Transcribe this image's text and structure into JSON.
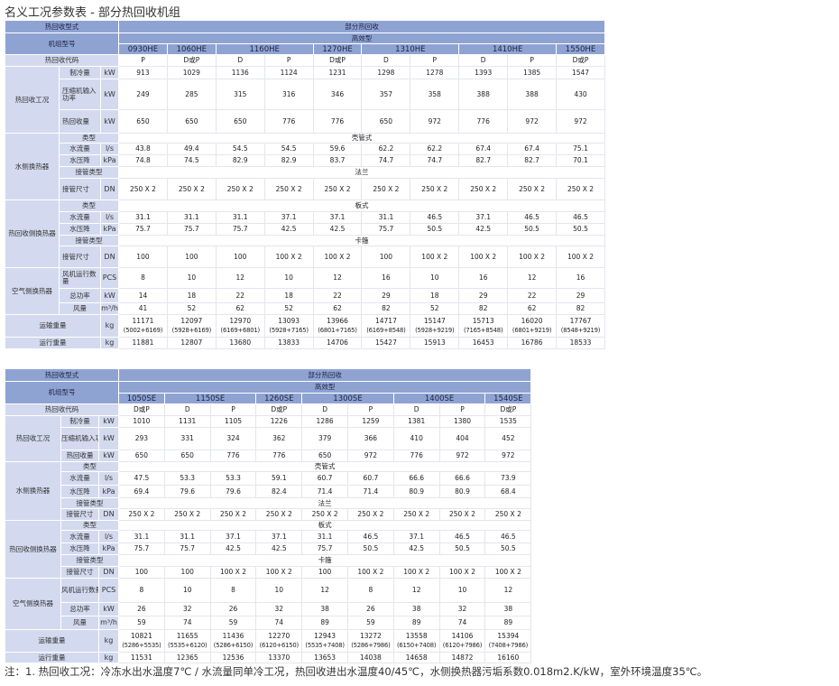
{
  "title": "名义工况参数表 - 部分热回收机组",
  "table1": {
    "type_label": "热回收型式",
    "type_value": "部分热回收",
    "model_label": "机组型号",
    "series": "高效型",
    "models": [
      {
        "name": "0930HE",
        "span": 1
      },
      {
        "name": "1060HE",
        "span": 1
      },
      {
        "name": "1160HE",
        "span": 2
      },
      {
        "name": "1270HE",
        "span": 1
      },
      {
        "name": "1310HE",
        "span": 2
      },
      {
        "name": "1410HE",
        "span": 2
      },
      {
        "name": "1550HE",
        "span": 1
      }
    ],
    "code_label": "热回收代码",
    "codes": [
      "P",
      "D或P",
      "D",
      "P",
      "D或P",
      "D",
      "P",
      "D",
      "P",
      "D或P"
    ],
    "sections": [
      {
        "category": "热回收工况",
        "rows": [
          {
            "label": "制冷量",
            "unit": "kW",
            "values": [
              "913",
              "1029",
              "1136",
              "1124",
              "1231",
              "1298",
              "1278",
              "1393",
              "1385",
              "1547"
            ]
          },
          {
            "label": "压缩机输入功率",
            "unit": "kW",
            "values": [
              "249",
              "285",
              "315",
              "316",
              "346",
              "357",
              "358",
              "388",
              "388",
              "430"
            ]
          },
          {
            "label": "热回收量",
            "unit": "kW",
            "values": [
              "650",
              "650",
              "650",
              "776",
              "776",
              "650",
              "972",
              "776",
              "972",
              "972"
            ]
          }
        ]
      },
      {
        "category": "水侧换热器",
        "rows": [
          {
            "label": "类型",
            "unit": "",
            "span_value": "壳管式"
          },
          {
            "label": "水流量",
            "unit": "l/s",
            "values": [
              "43.8",
              "49.4",
              "54.5",
              "54.5",
              "59.6",
              "62.2",
              "62.2",
              "67.4",
              "67.4",
              "75.1"
            ]
          },
          {
            "label": "水压降",
            "unit": "kPa",
            "values": [
              "74.8",
              "74.5",
              "82.9",
              "82.9",
              "83.7",
              "74.7",
              "74.7",
              "82.7",
              "82.7",
              "70.1"
            ]
          },
          {
            "label": "接管类型",
            "unit": "",
            "span_value": "法兰"
          },
          {
            "label": "接管尺寸",
            "unit": "DN",
            "values": [
              "250 X 2",
              "250 X 2",
              "250 X 2",
              "250 X 2",
              "250 X 2",
              "250 X 2",
              "250 X 2",
              "250 X 2",
              "250 X 2",
              "250 X 2"
            ]
          }
        ]
      },
      {
        "category": "热回收侧换热器",
        "rows": [
          {
            "label": "类型",
            "unit": "",
            "span_value": "板式"
          },
          {
            "label": "水流量",
            "unit": "l/s",
            "values": [
              "31.1",
              "31.1",
              "31.1",
              "37.1",
              "37.1",
              "31.1",
              "46.5",
              "37.1",
              "46.5",
              "46.5"
            ]
          },
          {
            "label": "水压降",
            "unit": "kPa",
            "values": [
              "75.7",
              "75.7",
              "75.7",
              "42.5",
              "42.5",
              "75.7",
              "50.5",
              "42.5",
              "50.5",
              "50.5"
            ]
          },
          {
            "label": "接管类型",
            "unit": "",
            "span_value": "卡箍"
          },
          {
            "label": "接管尺寸",
            "unit": "DN",
            "values": [
              "100",
              "100",
              "100",
              "100 X 2",
              "100 X 2",
              "100",
              "100 X 2",
              "100 X 2",
              "100 X 2",
              "100 X 2"
            ]
          }
        ]
      },
      {
        "category": "空气侧换热器",
        "rows": [
          {
            "label": "风机运行数量",
            "unit": "PCS",
            "values": [
              "8",
              "10",
              "12",
              "10",
              "12",
              "16",
              "10",
              "16",
              "12",
              "16"
            ]
          },
          {
            "label": "总功率",
            "unit": "kW",
            "values": [
              "14",
              "18",
              "22",
              "18",
              "22",
              "29",
              "18",
              "29",
              "22",
              "29"
            ]
          },
          {
            "label": "风量",
            "unit": "m³/h",
            "values": [
              "41",
              "52",
              "62",
              "52",
              "62",
              "82",
              "52",
              "82",
              "62",
              "82"
            ]
          }
        ]
      }
    ],
    "weights": [
      {
        "label": "运输重量",
        "unit": "kg",
        "values": [
          "11171",
          "12097",
          "12970",
          "13093",
          "13966",
          "14717",
          "15147",
          "15713",
          "16020",
          "17767"
        ],
        "sub": [
          "(5002+6169)",
          "(5928+6169)",
          "(6169+6801)",
          "(5928+7165)",
          "(6801+7165)",
          "(6169+8548)",
          "(5928+9219)",
          "(7165+8548)",
          "(6801+9219)",
          "(8548+9219)"
        ]
      },
      {
        "label": "运行重量",
        "unit": "kg",
        "values": [
          "11881",
          "12807",
          "13680",
          "13833",
          "14706",
          "15427",
          "15913",
          "16453",
          "16786",
          "18533"
        ]
      }
    ]
  },
  "table2": {
    "type_label": "热回收型式",
    "type_value": "部分热回收",
    "model_label": "机组型号",
    "series": "高效型",
    "models": [
      {
        "name": "1050SE",
        "span": 1
      },
      {
        "name": "1150SE",
        "span": 2
      },
      {
        "name": "1260SE",
        "span": 1
      },
      {
        "name": "1300SE",
        "span": 2
      },
      {
        "name": "1400SE",
        "span": 2
      },
      {
        "name": "1540SE",
        "span": 1
      }
    ],
    "code_label": "热回收代码",
    "codes": [
      "D或P",
      "D",
      "P",
      "D或P",
      "D",
      "P",
      "D",
      "P",
      "D或P"
    ],
    "sections": [
      {
        "category": "热回收工况",
        "rows": [
          {
            "label": "制冷量",
            "unit": "kW",
            "values": [
              "1010",
              "1131",
              "1105",
              "1226",
              "1286",
              "1259",
              "1381",
              "1380",
              "1535"
            ]
          },
          {
            "label": "压缩机输入功率",
            "unit": "kW",
            "values": [
              "293",
              "331",
              "324",
              "362",
              "379",
              "366",
              "410",
              "404",
              "452"
            ]
          },
          {
            "label": "热回收量",
            "unit": "kW",
            "values": [
              "650",
              "650",
              "776",
              "776",
              "650",
              "972",
              "776",
              "972",
              "972"
            ]
          }
        ]
      },
      {
        "category": "水侧换热器",
        "rows": [
          {
            "label": "类型",
            "unit": "",
            "span_value": "壳管式"
          },
          {
            "label": "水流量",
            "unit": "l/s",
            "values": [
              "47.5",
              "53.3",
              "53.3",
              "59.1",
              "60.7",
              "60.7",
              "66.6",
              "66.6",
              "73.9"
            ]
          },
          {
            "label": "水压降",
            "unit": "kPa",
            "values": [
              "69.4",
              "79.6",
              "79.6",
              "82.4",
              "71.4",
              "71.4",
              "80.9",
              "80.9",
              "68.4"
            ]
          },
          {
            "label": "接管类型",
            "unit": "",
            "span_value": "法兰"
          },
          {
            "label": "接管尺寸",
            "unit": "DN",
            "values": [
              "250 X 2",
              "250 X 2",
              "250 X 2",
              "250 X 2",
              "250 X 2",
              "250 X 2",
              "250 X 2",
              "250 X 2",
              "250 X 2"
            ]
          }
        ]
      },
      {
        "category": "热回收侧换热器",
        "rows": [
          {
            "label": "类型",
            "unit": "",
            "span_value": "板式"
          },
          {
            "label": "水流量",
            "unit": "l/s",
            "values": [
              "31.1",
              "31.1",
              "37.1",
              "37.1",
              "31.1",
              "46.5",
              "37.1",
              "46.5",
              "46.5"
            ]
          },
          {
            "label": "水压降",
            "unit": "kPa",
            "values": [
              "75.7",
              "75.7",
              "42.5",
              "42.5",
              "75.7",
              "50.5",
              "42.5",
              "50.5",
              "50.5"
            ]
          },
          {
            "label": "接管类型",
            "unit": "",
            "span_value": "卡箍"
          },
          {
            "label": "接管尺寸",
            "unit": "DN",
            "values": [
              "100",
              "100",
              "100 X 2",
              "100 X 2",
              "100",
              "100 X 2",
              "100 X 2",
              "100 X 2",
              "100 X 2"
            ]
          }
        ]
      },
      {
        "category": "空气侧换热器",
        "rows": [
          {
            "label": "风机运行数量",
            "unit": "PCS",
            "values": [
              "8",
              "10",
              "8",
              "10",
              "12",
              "8",
              "12",
              "10",
              "12"
            ]
          },
          {
            "label": "总功率",
            "unit": "kW",
            "values": [
              "26",
              "32",
              "26",
              "32",
              "38",
              "26",
              "38",
              "32",
              "38"
            ]
          },
          {
            "label": "风量",
            "unit": "m³/h",
            "values": [
              "59",
              "74",
              "59",
              "74",
              "89",
              "59",
              "89",
              "74",
              "89"
            ]
          }
        ]
      }
    ],
    "weights": [
      {
        "label": "运输重量",
        "unit": "kg",
        "values": [
          "10821",
          "11655",
          "11436",
          "12270",
          "12943",
          "13272",
          "13558",
          "14106",
          "15394"
        ],
        "sub": [
          "(5286+5535)",
          "(5535+6120)",
          "(5286+6150)",
          "(6120+6150)",
          "(5535+7408)",
          "(5286+7986)",
          "(6150+7408)",
          "(6120+7986)",
          "(7408+7986)"
        ]
      },
      {
        "label": "运行重量",
        "unit": "kg",
        "values": [
          "11531",
          "12365",
          "12536",
          "13370",
          "13653",
          "14038",
          "14658",
          "14872",
          "16160"
        ]
      }
    ]
  },
  "note": "注：1. 热回收工况：冷冻水出水温度7℃ /  水流量同单冷工况，热回收进出水温度40/45℃，水侧换热器污垢系数0.018m2.K/kW，室外环境温度35℃。"
}
